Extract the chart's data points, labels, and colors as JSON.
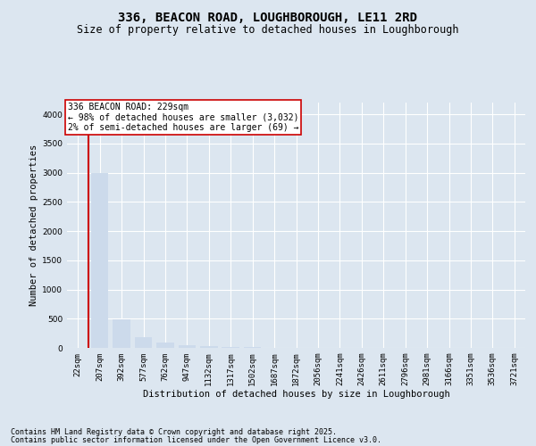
{
  "title_line1": "336, BEACON ROAD, LOUGHBOROUGH, LE11 2RD",
  "title_line2": "Size of property relative to detached houses in Loughborough",
  "xlabel": "Distribution of detached houses by size in Loughborough",
  "ylabel": "Number of detached properties",
  "categories": [
    "22sqm",
    "207sqm",
    "392sqm",
    "577sqm",
    "762sqm",
    "947sqm",
    "1132sqm",
    "1317sqm",
    "1502sqm",
    "1687sqm",
    "1872sqm",
    "2056sqm",
    "2241sqm",
    "2426sqm",
    "2611sqm",
    "2796sqm",
    "2981sqm",
    "3166sqm",
    "3351sqm",
    "3536sqm",
    "3721sqm"
  ],
  "values": [
    3,
    3000,
    490,
    185,
    90,
    45,
    25,
    15,
    9,
    7,
    4,
    3,
    3,
    2,
    2,
    2,
    1,
    1,
    1,
    1,
    1
  ],
  "bar_color": "#ccdaeb",
  "vline_color": "#cc0000",
  "vline_x": 0.5,
  "annotation_text": "336 BEACON ROAD: 229sqm\n← 98% of detached houses are smaller (3,032)\n2% of semi-detached houses are larger (69) →",
  "annotation_box_facecolor": "#ffffff",
  "annotation_box_edgecolor": "#cc0000",
  "ylim_max": 4200,
  "yticks": [
    0,
    500,
    1000,
    1500,
    2000,
    2500,
    3000,
    3500,
    4000
  ],
  "background_color": "#dce6f0",
  "grid_color": "#ffffff",
  "footer_line1": "Contains HM Land Registry data © Crown copyright and database right 2025.",
  "footer_line2": "Contains public sector information licensed under the Open Government Licence v3.0.",
  "title_fontsize": 10,
  "subtitle_fontsize": 8.5,
  "axis_label_fontsize": 7.5,
  "tick_fontsize": 6.5,
  "annotation_fontsize": 7,
  "footer_fontsize": 6
}
